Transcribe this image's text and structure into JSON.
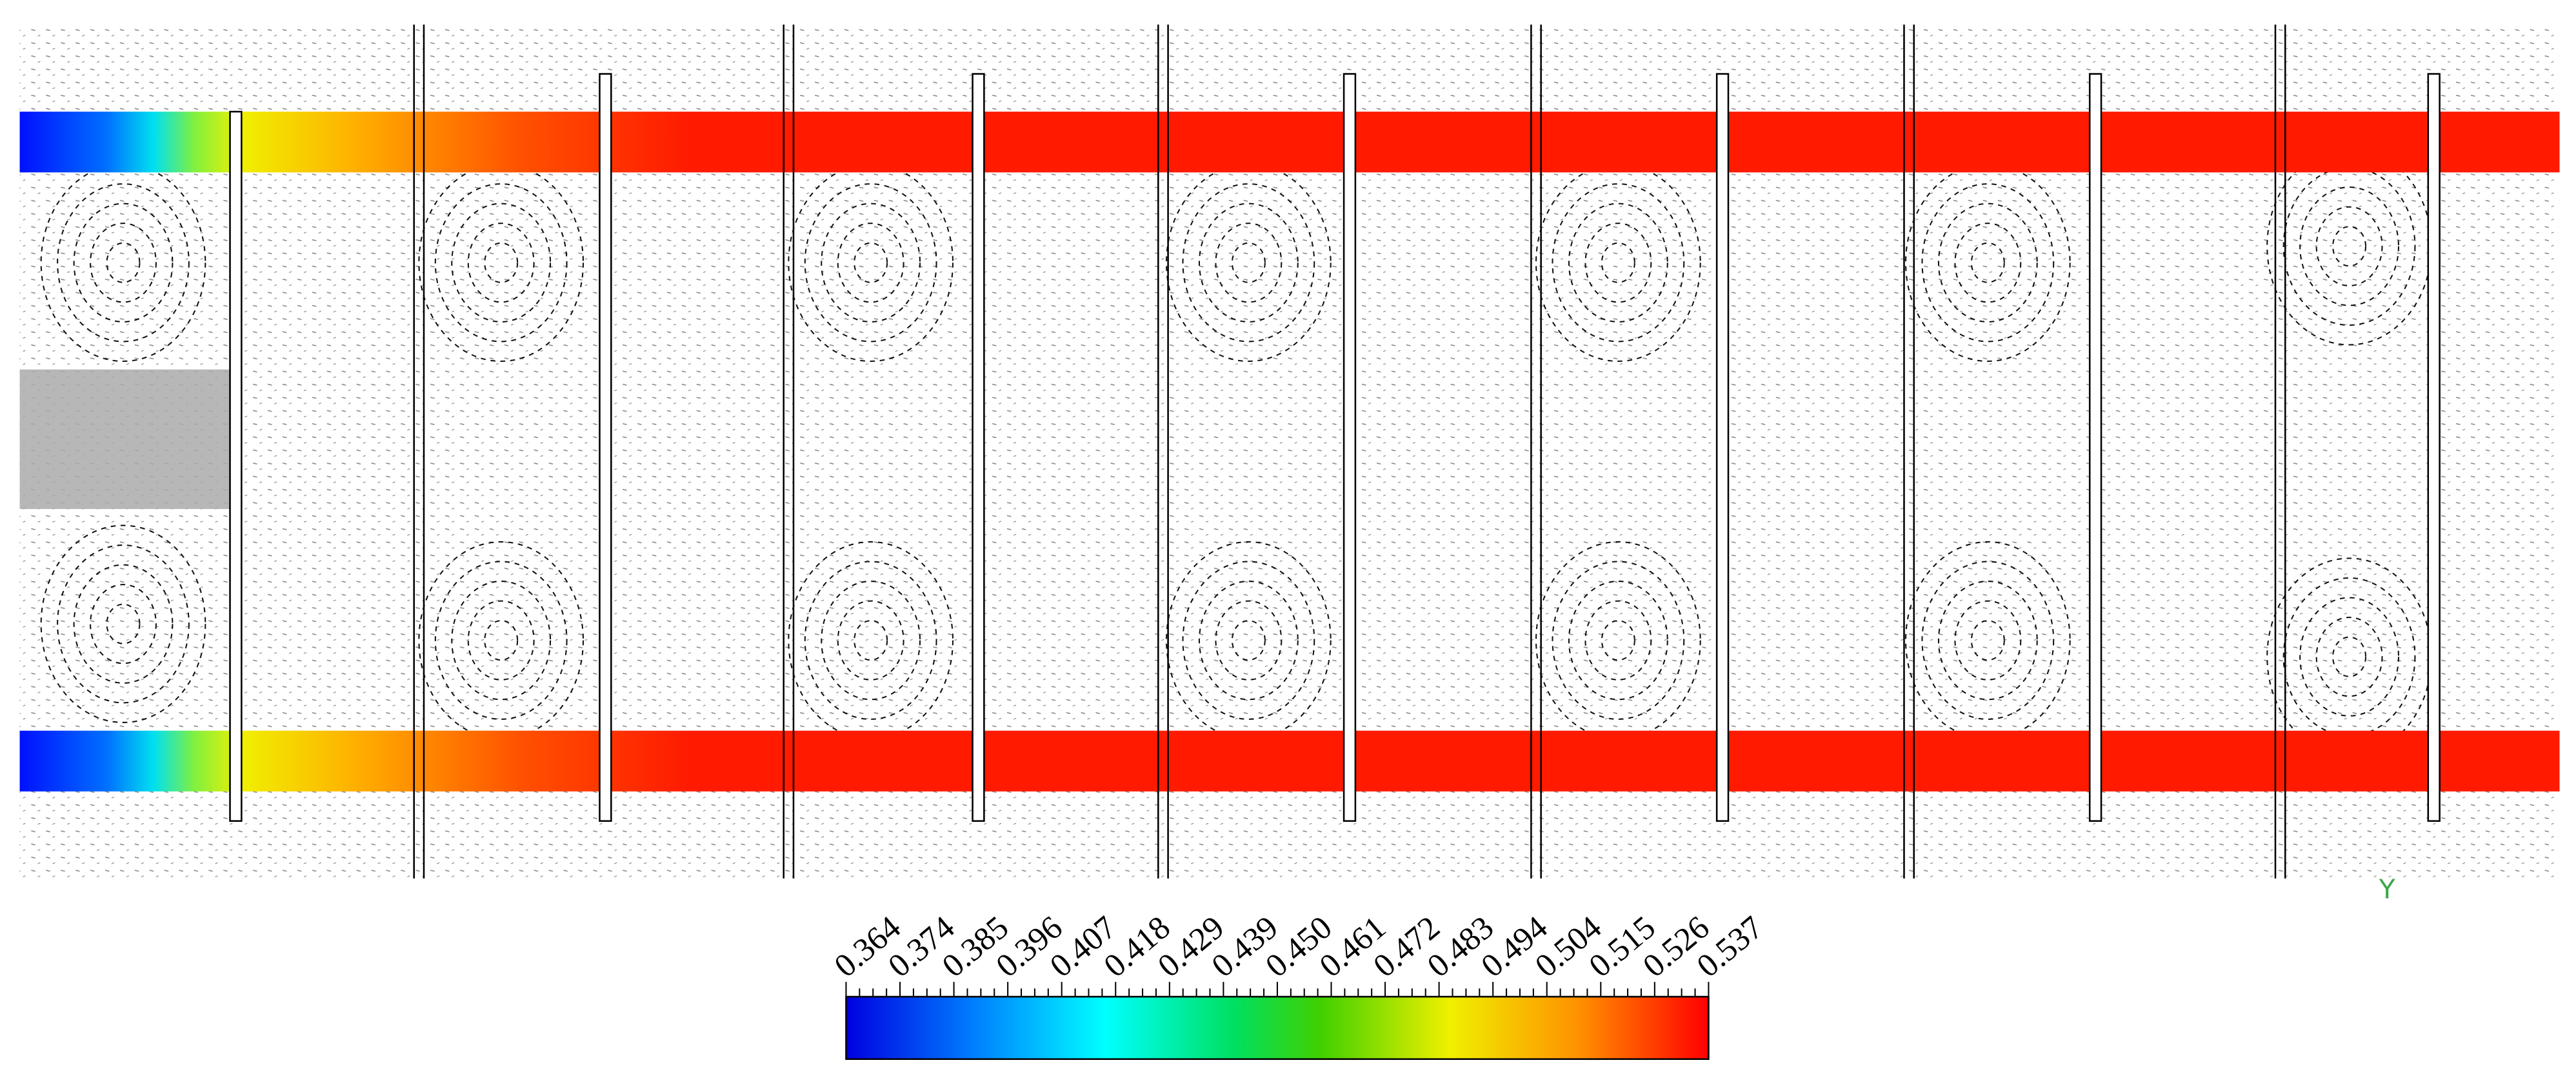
{
  "colorbar": {
    "ticks": [
      "0.364",
      "0.374",
      "0.385",
      "0.396",
      "0.407",
      "0.418",
      "0.429",
      "0.439",
      "0.450",
      "0.461",
      "0.472",
      "0.483",
      "0.494",
      "0.504",
      "0.515",
      "0.526",
      "0.537"
    ]
  },
  "axis_label": "Y"
}
